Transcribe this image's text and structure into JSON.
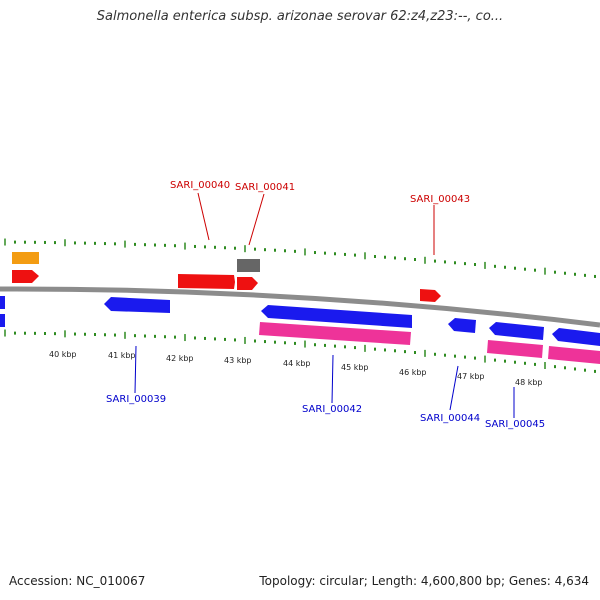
{
  "title": "Salmonella enterica subsp. arizonae serovar 62:z4,z23:--, co...",
  "footer": {
    "accession": "Accession: NC_010067",
    "summary": "Topology: circular; Length: 4,600,800 bp; Genes: 4,634"
  },
  "colors": {
    "backbone": "#8c8c8c",
    "tick": "#2e8b20",
    "forward_gene": "#ee1111",
    "reverse_gene": "#1a1aee",
    "pseudo_gene": "#ee3399",
    "rna_gene": "#f39c12",
    "other_gene": "#666666",
    "label_forward": "#cc0000",
    "label_reverse": "#0000cc"
  },
  "scale_labels": [
    "40 kbp",
    "41 kbp",
    "42 kbp",
    "43 kbp",
    "44 kbp",
    "45 kbp",
    "46 kbp",
    "47 kbp",
    "48 kbp"
  ],
  "gene_labels": {
    "forward": [
      "SARI_00040",
      "SARI_00041",
      "SARI_00043"
    ],
    "reverse": [
      "SARI_00039",
      "SARI_00042",
      "SARI_00044",
      "SARI_00045"
    ]
  }
}
